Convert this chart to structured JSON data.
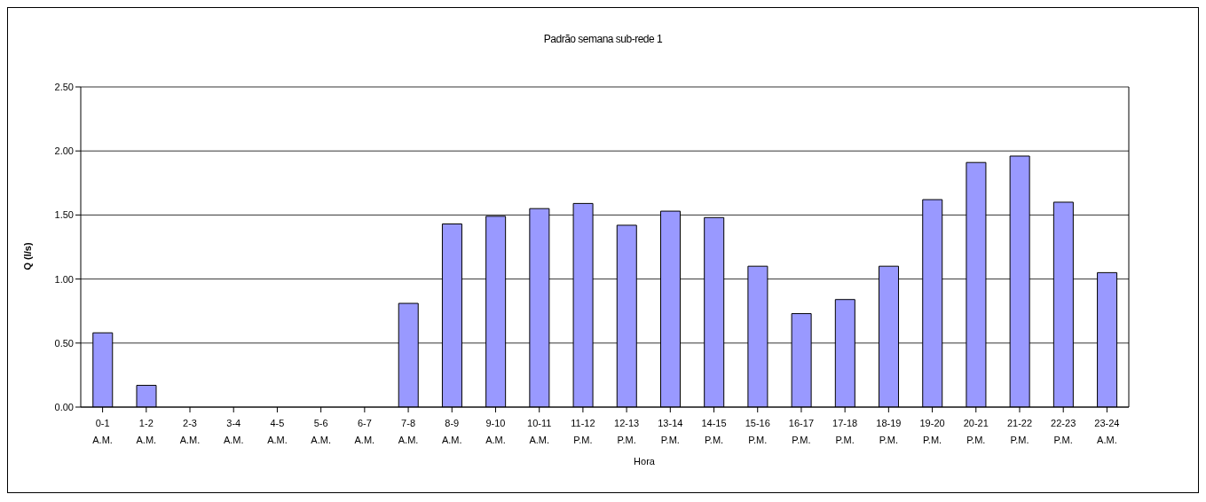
{
  "chart_data": {
    "type": "bar",
    "title": "Padrão semana sub-rede 1",
    "xlabel": "Hora",
    "ylabel": "Q (l/s)",
    "categories": [
      "0-1 A.M.",
      "1-2 A.M.",
      "2-3 A.M.",
      "3-4 A.M.",
      "4-5 A.M.",
      "5-6 A.M.",
      "6-7 A.M.",
      "7-8 A.M.",
      "8-9 A.M.",
      "9-10 A.M.",
      "10-11 A.M.",
      "11-12 P.M.",
      "12-13 P.M.",
      "13-14 P.M.",
      "14-15 P.M.",
      "15-16 P.M.",
      "16-17 P.M.",
      "17-18 P.M.",
      "18-19 P.M.",
      "19-20 P.M.",
      "20-21 P.M.",
      "21-22 P.M.",
      "22-23 P.M.",
      "23-24 A.M."
    ],
    "values": [
      0.58,
      0.17,
      0,
      0,
      0,
      0,
      0,
      0.81,
      1.43,
      1.49,
      1.55,
      1.59,
      1.42,
      1.53,
      1.48,
      1.1,
      0.73,
      0.84,
      1.1,
      1.62,
      1.91,
      1.96,
      1.6,
      1.05
    ],
    "color": "#9999ff",
    "ylim": [
      0,
      2.5
    ],
    "yticks": [
      {
        "value": 0,
        "label": "0.00"
      },
      {
        "value": 0.5,
        "label": "0.50"
      },
      {
        "value": 1,
        "label": "1.00"
      },
      {
        "value": 1.5,
        "label": "1.50"
      },
      {
        "value": 2,
        "label": "2.00"
      },
      {
        "value": 2.5,
        "label": "2.50"
      }
    ],
    "grid": "y"
  }
}
